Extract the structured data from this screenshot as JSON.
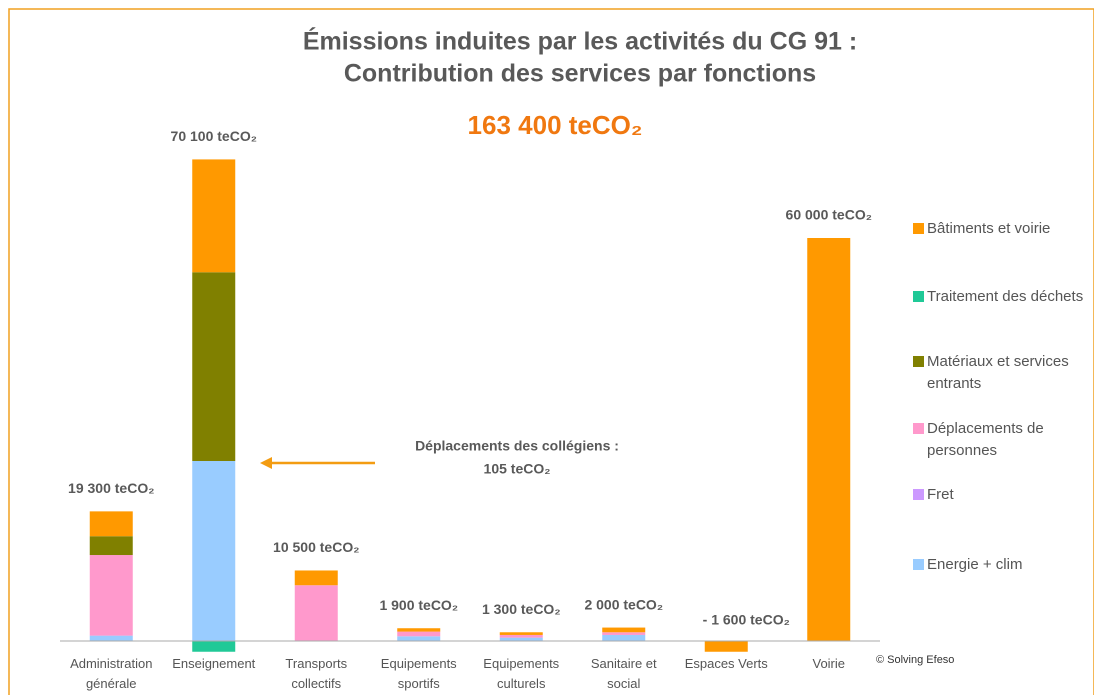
{
  "chart_data": {
    "type": "stacked_bar",
    "title": "Émissions induites par les activités du CG 91 :",
    "subtitle": "Contribution des services par fonctions",
    "total_label": "163 400 teCO₂",
    "annotation": [
      "Déplacements des collégiens :",
      "105 teCO₂"
    ],
    "credit": "© Solving Efeso",
    "categories": [
      "Administration générale",
      "Enseignement",
      "Transports collectifs",
      "Equipements sportifs",
      "Equipements culturels",
      "Sanitaire et social",
      "Espaces Verts",
      "Voirie"
    ],
    "series": [
      {
        "name": "Energie + clim",
        "color": "#99ccff",
        "values": [
          800,
          26800,
          0,
          700,
          500,
          900,
          0,
          0
        ]
      },
      {
        "name": "Fret",
        "color": "#cc99ff",
        "values": [
          0,
          0,
          0,
          0,
          0,
          0,
          0,
          0
        ]
      },
      {
        "name": "Déplacements de personnes",
        "color": "#ff99cc",
        "values": [
          12000,
          0,
          8300,
          700,
          400,
          400,
          0,
          0
        ]
      },
      {
        "name": "Matériaux et services entrants",
        "color": "#808000",
        "values": [
          2800,
          28100,
          0,
          0,
          0,
          0,
          0,
          0
        ]
      },
      {
        "name": "Traitement des déchets",
        "color": "#20c997",
        "values": [
          0,
          -1600,
          0,
          0,
          0,
          0,
          0,
          0
        ]
      },
      {
        "name": "Bâtiments et voirie",
        "color": "#ff9900",
        "values": [
          3700,
          16800,
          2200,
          500,
          400,
          700,
          -1600,
          60000
        ]
      }
    ],
    "totals": {
      "values": [
        19300,
        70100,
        10500,
        1900,
        1300,
        2000,
        -1600,
        60000
      ],
      "value_labels": [
        "19 300 teCO₂",
        "70 100 teCO₂",
        "10 500 teCO₂",
        "1 900 teCO₂",
        "1 300 teCO₂",
        "2 000 teCO₂",
        "- 1 600 teCO₂",
        "60 000 teCO₂"
      ]
    }
  }
}
